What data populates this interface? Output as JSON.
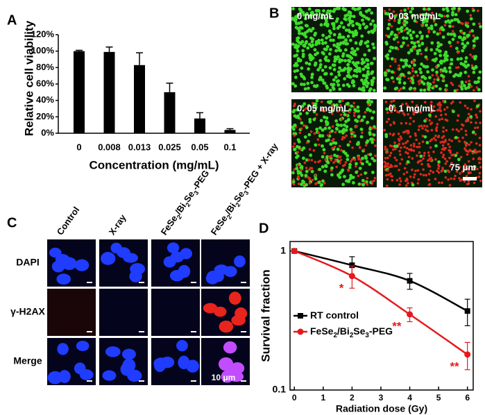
{
  "chart_data": [
    {
      "type": "bar",
      "label": "A",
      "y_label": "Relative cell viability",
      "x_label": "Concentration (mg/mL)",
      "categories": [
        "0",
        "0.008",
        "0.013",
        "0.025",
        "0.05",
        "0.1"
      ],
      "values": [
        100,
        99,
        83,
        50,
        18,
        4
      ],
      "errors": [
        1,
        6,
        15,
        11,
        7,
        1.5
      ],
      "color": "#000000",
      "ylim": [
        0,
        120
      ],
      "yticks": [
        {
          "value": 0,
          "label": "0%"
        },
        {
          "value": 20,
          "label": "20%"
        },
        {
          "value": 40,
          "label": "40%"
        },
        {
          "value": 60,
          "label": "60%"
        },
        {
          "value": 80,
          "label": "80%"
        },
        {
          "value": 100,
          "label": "100%"
        },
        {
          "value": 120,
          "label": "120%"
        }
      ]
    },
    {
      "type": "line",
      "label": "D",
      "y_label": "Survival fraction",
      "x_label": "Radiation dose (Gy)",
      "log_y": true,
      "x": [
        0,
        2,
        4,
        6
      ],
      "xlim": [
        -0.15,
        6.2
      ],
      "xticks": [
        0,
        1,
        2,
        3,
        4,
        5,
        6
      ],
      "ylim": [
        0.1,
        1.17
      ],
      "yticks": [
        0.1,
        1
      ],
      "legend": "lower-left",
      "series": [
        {
          "name": "RT control",
          "color": "#000000",
          "marker": "square",
          "values": [
            1,
            0.79,
            0.61,
            0.37
          ],
          "errors": [
            0,
            0.12,
            0.08,
            0.08
          ]
        },
        {
          "name": "FeSe2/Bi2Se3-PEG",
          "color": "#e41a1c",
          "marker": "circle",
          "values": [
            1,
            0.66,
            0.35,
            0.18
          ],
          "errors": [
            0,
            0.12,
            0.04,
            0.04
          ],
          "annotations": [
            "",
            "*",
            "**",
            "**"
          ]
        }
      ]
    }
  ],
  "panel_b": {
    "label": "B",
    "images": [
      "0 mg/mL",
      "0. 03 mg/mL",
      "0. 05 mg/mL",
      "0. 1 mg/mL"
    ],
    "scale_bar": "75 μm"
  },
  "panel_c": {
    "label": "C",
    "columns": [
      "Control",
      "X-ray",
      "FeSe2/Bi2Se3-PEG",
      "FeSe2/Bi2Se3-PEG + X-ray"
    ],
    "rows": [
      "DAPI",
      "γ-H2AX",
      "Merge"
    ],
    "scale_bar": "10 μm"
  }
}
